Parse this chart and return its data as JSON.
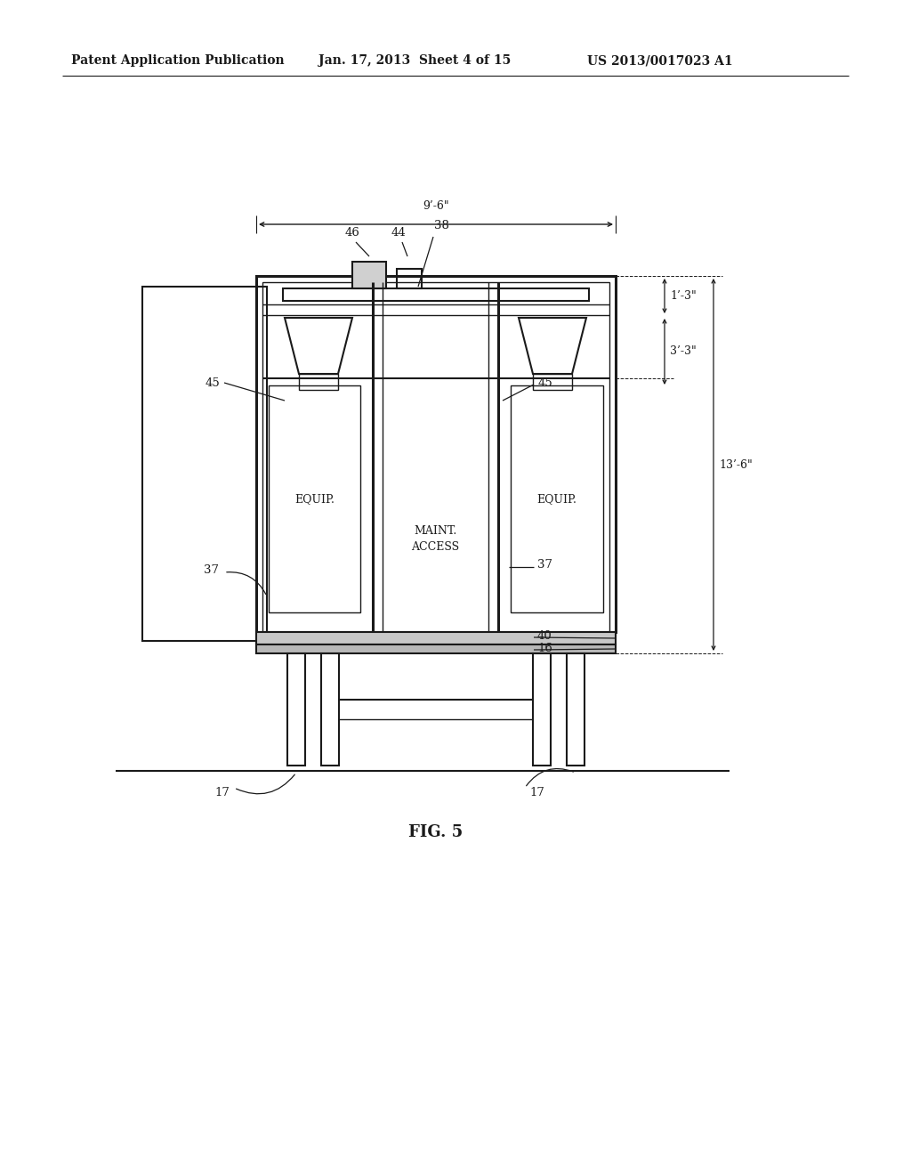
{
  "bg_color": "#ffffff",
  "line_color": "#1a1a1a",
  "header_left": "Patent Application Publication",
  "header_mid": "Jan. 17, 2013  Sheet 4 of 15",
  "header_right": "US 2013/0017023 A1",
  "fig_label": "FIG. 5",
  "dim_width": "9’-6\"",
  "dim_height_top": "1’-3\"",
  "dim_height_mid": "3’-3\"",
  "dim_height_total": "13’-6\"",
  "maint_text": "MAINT.\nACCESS",
  "equip_left": "EQUIP.",
  "equip_right": "EQUIP."
}
